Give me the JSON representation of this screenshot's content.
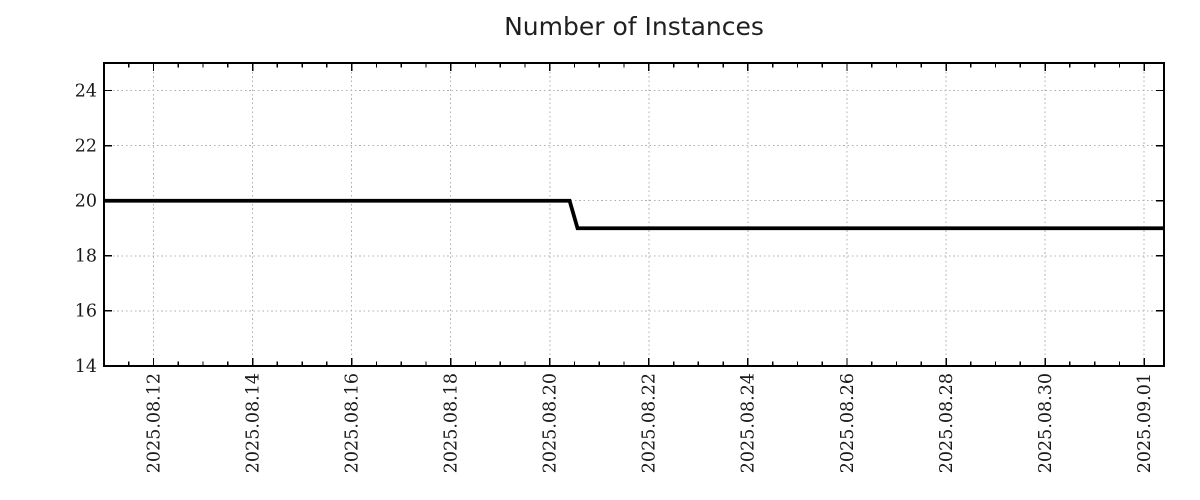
{
  "chart_data": {
    "type": "line",
    "title": "Number of Instances",
    "legend": "none",
    "grid": {
      "style": "dotted",
      "on_major_ticks_only": true
    },
    "x_axis": {
      "label": "",
      "epoch": "2025-08-11",
      "range_days": [
        0,
        21.4
      ],
      "major_tick_days": [
        1,
        3,
        5,
        7,
        9,
        11,
        13,
        15,
        17,
        19,
        21
      ],
      "minor_tick_interval_days": 0.5,
      "tick_labels": [
        "2025.08.12",
        "2025.08.14",
        "2025.08.16",
        "2025.08.18",
        "2025.08.20",
        "2025.08.22",
        "2025.08.24",
        "2025.08.26",
        "2025.08.28",
        "2025.08.30",
        "2025.09.01"
      ],
      "tick_label_rotation_deg": -90
    },
    "y_axis": {
      "label": "",
      "range": [
        14,
        25
      ],
      "tick_values": [
        14,
        16,
        18,
        20,
        22,
        24
      ],
      "tick_labels": [
        "14",
        "16",
        "18",
        "20",
        "22",
        "24"
      ]
    },
    "series": [
      {
        "name": "Number of Instances",
        "color": "#000000",
        "points": [
          {
            "day": 0.0,
            "value": 20
          },
          {
            "day": 9.4,
            "value": 20,
            "approx_date": "2025-08-20 09:30"
          },
          {
            "day": 9.56,
            "value": 19,
            "approx_date": "2025-08-20 13:30"
          },
          {
            "day": 21.4,
            "value": 19
          }
        ]
      }
    ]
  },
  "style": {
    "frame_color": "#000000",
    "grid_color": "#b0b0b0",
    "text_color": "#1a1a1a",
    "line_color": "#000000",
    "line_width": 3.8
  }
}
